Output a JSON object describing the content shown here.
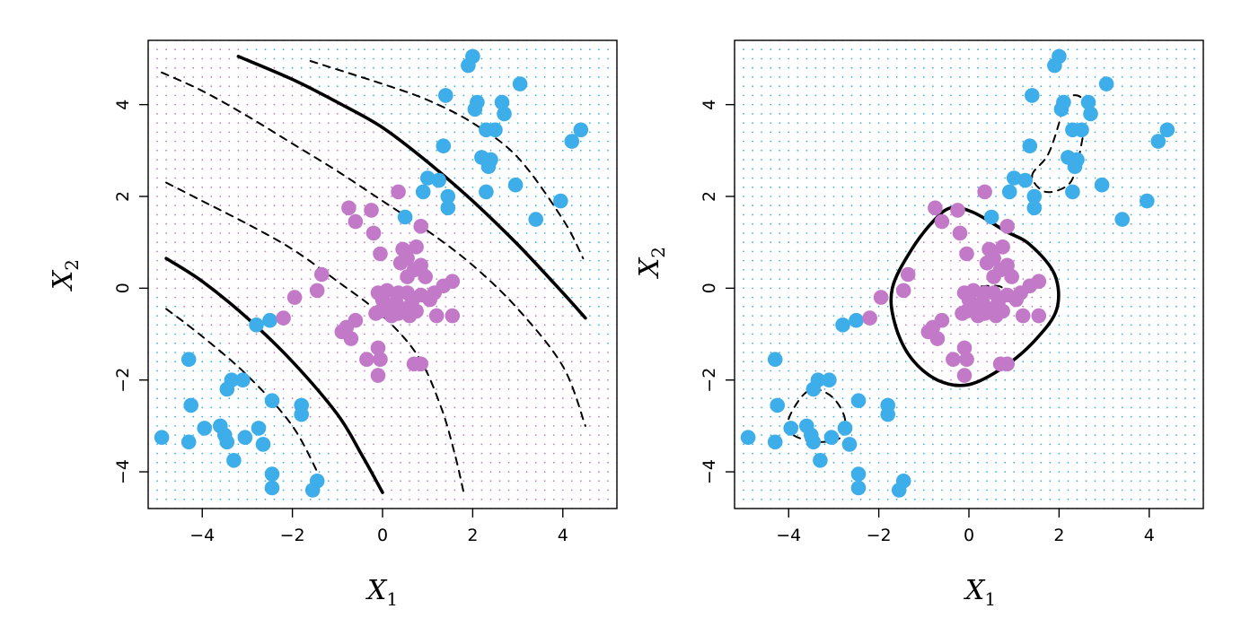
{
  "chart_data": [
    {
      "type": "scatter",
      "panel": "left",
      "xlabel": "X",
      "xlabel_sub": "1",
      "ylabel": "X",
      "ylabel_sub": "2",
      "xlim": [
        -5.2,
        5.2
      ],
      "ylim": [
        -4.8,
        5.4
      ],
      "xticks": [
        -4,
        -2,
        0,
        2,
        4
      ],
      "yticks": [
        -4,
        -2,
        0,
        2,
        4
      ],
      "xtick_labels": [
        "−4",
        "−2",
        "0",
        "2",
        "4"
      ],
      "ytick_labels": [
        "−4",
        "−2",
        "0",
        "2",
        "4"
      ],
      "grid": false,
      "background": "dotted class-region grid (blue and purple)",
      "classes": [
        {
          "color": "#3daee9",
          "points": [
            [
              2.0,
              5.05
            ],
            [
              1.9,
              4.85
            ],
            [
              3.05,
              4.45
            ],
            [
              1.4,
              4.2
            ],
            [
              2.1,
              4.05
            ],
            [
              2.65,
              4.05
            ],
            [
              2.05,
              3.9
            ],
            [
              2.7,
              3.8
            ],
            [
              2.3,
              3.45
            ],
            [
              2.5,
              3.45
            ],
            [
              1.35,
              3.1
            ],
            [
              4.4,
              3.45
            ],
            [
              4.2,
              3.2
            ],
            [
              2.2,
              2.85
            ],
            [
              2.4,
              2.8
            ],
            [
              2.35,
              2.65
            ],
            [
              2.95,
              2.25
            ],
            [
              1.0,
              2.4
            ],
            [
              1.25,
              2.35
            ],
            [
              0.9,
              2.1
            ],
            [
              1.45,
              2.0
            ],
            [
              1.45,
              1.75
            ],
            [
              2.3,
              2.1
            ],
            [
              3.4,
              1.5
            ],
            [
              3.95,
              1.9
            ],
            [
              0.5,
              1.55
            ],
            [
              -2.8,
              -0.8
            ],
            [
              -2.5,
              -0.7
            ],
            [
              -4.3,
              -1.55
            ],
            [
              -3.1,
              -2.0
            ],
            [
              -3.35,
              -2.0
            ],
            [
              -3.45,
              -2.2
            ],
            [
              -4.25,
              -2.55
            ],
            [
              -2.45,
              -2.45
            ],
            [
              -1.8,
              -2.55
            ],
            [
              -1.8,
              -2.75
            ],
            [
              -4.9,
              -3.25
            ],
            [
              -4.3,
              -3.35
            ],
            [
              -3.95,
              -3.05
            ],
            [
              -3.6,
              -3.0
            ],
            [
              -3.5,
              -3.2
            ],
            [
              -3.45,
              -3.35
            ],
            [
              -3.05,
              -3.25
            ],
            [
              -2.75,
              -3.05
            ],
            [
              -2.65,
              -3.4
            ],
            [
              -3.3,
              -3.75
            ],
            [
              -2.45,
              -4.05
            ],
            [
              -2.45,
              -4.35
            ],
            [
              -1.45,
              -4.2
            ],
            [
              -1.55,
              -4.4
            ]
          ]
        },
        {
          "color": "#c27ac8",
          "points": [
            [
              0.35,
              2.1
            ],
            [
              -0.75,
              1.75
            ],
            [
              -0.25,
              1.7
            ],
            [
              -0.6,
              1.45
            ],
            [
              0.85,
              1.35
            ],
            [
              -0.2,
              1.2
            ],
            [
              0.45,
              0.85
            ],
            [
              0.75,
              0.9
            ],
            [
              -0.05,
              0.75
            ],
            [
              0.55,
              0.65
            ],
            [
              0.4,
              0.55
            ],
            [
              0.85,
              0.5
            ],
            [
              0.7,
              0.4
            ],
            [
              -1.35,
              0.3
            ],
            [
              0.55,
              0.25
            ],
            [
              0.95,
              0.25
            ],
            [
              1.55,
              0.15
            ],
            [
              1.35,
              0.05
            ],
            [
              -1.45,
              -0.05
            ],
            [
              -1.95,
              -0.2
            ],
            [
              0.1,
              -0.05
            ],
            [
              0.35,
              -0.1
            ],
            [
              -0.1,
              -0.1
            ],
            [
              0.55,
              -0.1
            ],
            [
              0.85,
              -0.15
            ],
            [
              1.15,
              -0.1
            ],
            [
              0.0,
              -0.25
            ],
            [
              0.3,
              -0.3
            ],
            [
              0.65,
              -0.3
            ],
            [
              1.05,
              -0.25
            ],
            [
              0.15,
              -0.4
            ],
            [
              0.45,
              -0.45
            ],
            [
              -0.05,
              -0.5
            ],
            [
              0.35,
              -0.55
            ],
            [
              0.75,
              -0.5
            ],
            [
              0.2,
              -0.6
            ],
            [
              0.6,
              -0.6
            ],
            [
              1.2,
              -0.6
            ],
            [
              1.55,
              -0.6
            ],
            [
              -0.15,
              -0.55
            ],
            [
              -2.2,
              -0.65
            ],
            [
              -0.6,
              -0.7
            ],
            [
              -0.8,
              -0.85
            ],
            [
              -0.9,
              -0.95
            ],
            [
              -0.7,
              -1.1
            ],
            [
              -0.1,
              -1.3
            ],
            [
              -0.35,
              -1.55
            ],
            [
              -0.05,
              -1.55
            ],
            [
              0.7,
              -1.65
            ],
            [
              0.85,
              -1.65
            ],
            [
              -0.1,
              -1.9
            ]
          ]
        }
      ],
      "curves": [
        {
          "style": "solid",
          "points": [
            [
              -3.2,
              5.05
            ],
            [
              -2,
              4.55
            ],
            [
              -1,
              4.05
            ],
            [
              0,
              3.5
            ],
            [
              1,
              2.75
            ],
            [
              2,
              1.9
            ],
            [
              3,
              0.95
            ],
            [
              4,
              -0.1
            ],
            [
              4.5,
              -0.65
            ]
          ]
        },
        {
          "style": "dashed",
          "points": [
            [
              -1.6,
              4.95
            ],
            [
              0,
              4.45
            ],
            [
              1,
              4.1
            ],
            [
              2,
              3.6
            ],
            [
              3,
              2.85
            ],
            [
              4,
              1.5
            ],
            [
              4.45,
              0.65
            ]
          ]
        },
        {
          "style": "dashed",
          "points": [
            [
              -4.9,
              4.7
            ],
            [
              -4,
              4.3
            ],
            [
              -3,
              3.75
            ],
            [
              -2,
              3.15
            ],
            [
              -1,
              2.55
            ],
            [
              0,
              1.9
            ],
            [
              1,
              1.25
            ],
            [
              2,
              0.5
            ],
            [
              3,
              -0.45
            ],
            [
              4,
              -1.7
            ],
            [
              4.5,
              -3.0
            ]
          ]
        },
        {
          "style": "dashed",
          "points": [
            [
              -4.8,
              2.3
            ],
            [
              -4,
              1.9
            ],
            [
              -3,
              1.4
            ],
            [
              -2,
              0.85
            ],
            [
              -1,
              0.15
            ],
            [
              0,
              -0.6
            ],
            [
              0.8,
              -1.5
            ],
            [
              1.3,
              -2.6
            ],
            [
              1.6,
              -3.6
            ],
            [
              1.8,
              -4.45
            ]
          ]
        },
        {
          "style": "solid",
          "points": [
            [
              -4.8,
              0.65
            ],
            [
              -4,
              0.15
            ],
            [
              -3,
              -0.65
            ],
            [
              -2,
              -1.6
            ],
            [
              -1,
              -2.75
            ],
            [
              -0.45,
              -3.65
            ],
            [
              0,
              -4.45
            ]
          ]
        },
        {
          "style": "dashed",
          "points": [
            [
              -4.8,
              -0.45
            ],
            [
              -4,
              -1.05
            ],
            [
              -3,
              -1.9
            ],
            [
              -2,
              -3.0
            ],
            [
              -1.35,
              -4.2
            ]
          ]
        }
      ],
      "background_split": [
        [
          -5.2,
          0.1
        ],
        [
          -4,
          -0.8
        ],
        [
          -3,
          -1.6
        ],
        [
          -2,
          -2.6
        ],
        [
          -1,
          -3.7
        ],
        [
          -0.3,
          -4.8
        ]
      ],
      "background_split_upper": [
        [
          -3.5,
          5.4
        ],
        [
          -2,
          4.7
        ],
        [
          0,
          3.6
        ],
        [
          2,
          1.5
        ],
        [
          3.5,
          0.2
        ],
        [
          5.2,
          -1.5
        ]
      ]
    },
    {
      "type": "scatter",
      "panel": "right",
      "xlabel": "X",
      "xlabel_sub": "1",
      "ylabel": "X",
      "ylabel_sub": "2",
      "xlim": [
        -5.2,
        5.2
      ],
      "ylim": [
        -4.8,
        5.4
      ],
      "xticks": [
        -4,
        -2,
        0,
        2,
        4
      ],
      "yticks": [
        -4,
        -2,
        0,
        2,
        4
      ],
      "xtick_labels": [
        "−4",
        "−2",
        "0",
        "2",
        "4"
      ],
      "ytick_labels": [
        "−4",
        "−2",
        "0",
        "2",
        "4"
      ],
      "grid": false,
      "background": "dotted class-region grid (blue and purple)",
      "curves": [
        {
          "style": "solid",
          "closed": true,
          "points": [
            [
              -1.65,
              -0.75
            ],
            [
              -1.7,
              0.0
            ],
            [
              -1.3,
              0.8
            ],
            [
              -0.8,
              1.45
            ],
            [
              -0.4,
              1.75
            ],
            [
              0.1,
              1.65
            ],
            [
              0.8,
              1.25
            ],
            [
              1.35,
              0.95
            ],
            [
              1.9,
              0.3
            ],
            [
              1.95,
              -0.45
            ],
            [
              1.5,
              -1.1
            ],
            [
              0.8,
              -1.7
            ],
            [
              0.0,
              -2.1
            ],
            [
              -0.7,
              -2.0
            ],
            [
              -1.3,
              -1.5
            ]
          ]
        },
        {
          "style": "dashed",
          "closed": true,
          "points": [
            [
              0.0,
              -0.05
            ],
            [
              0.4,
              0.05
            ],
            [
              0.75,
              0.0
            ],
            [
              0.65,
              -0.35
            ],
            [
              0.3,
              -0.55
            ],
            [
              0.0,
              -0.45
            ]
          ]
        },
        {
          "style": "dashed",
          "closed": true,
          "points": [
            [
              1.4,
              2.45
            ],
            [
              1.75,
              2.9
            ],
            [
              2.0,
              3.6
            ],
            [
              2.1,
              4.05
            ],
            [
              2.4,
              4.2
            ],
            [
              2.7,
              3.9
            ],
            [
              2.55,
              3.4
            ],
            [
              2.4,
              2.7
            ],
            [
              2.2,
              2.25
            ],
            [
              1.7,
              2.1
            ]
          ]
        },
        {
          "style": "dashed",
          "closed": true,
          "points": [
            [
              -4.0,
              -2.85
            ],
            [
              -3.7,
              -2.35
            ],
            [
              -3.4,
              -2.2
            ],
            [
              -3.0,
              -2.4
            ],
            [
              -2.75,
              -2.85
            ],
            [
              -2.85,
              -3.25
            ],
            [
              -3.25,
              -3.35
            ],
            [
              -3.65,
              -3.3
            ],
            [
              -3.95,
              -3.15
            ]
          ]
        }
      ],
      "background_regions_purple": [
        [
          [
            -1.65,
            -0.75
          ],
          [
            -1.7,
            0.0
          ],
          [
            -1.3,
            0.8
          ],
          [
            -0.8,
            1.45
          ],
          [
            -0.4,
            1.75
          ],
          [
            0.1,
            1.65
          ],
          [
            0.8,
            1.25
          ],
          [
            1.35,
            0.95
          ],
          [
            1.9,
            0.3
          ],
          [
            1.95,
            -0.45
          ],
          [
            1.5,
            -1.1
          ],
          [
            0.8,
            -1.7
          ],
          [
            0.0,
            -2.1
          ],
          [
            -0.7,
            -2.0
          ],
          [
            -1.3,
            -1.5
          ]
        ]
      ]
    }
  ]
}
